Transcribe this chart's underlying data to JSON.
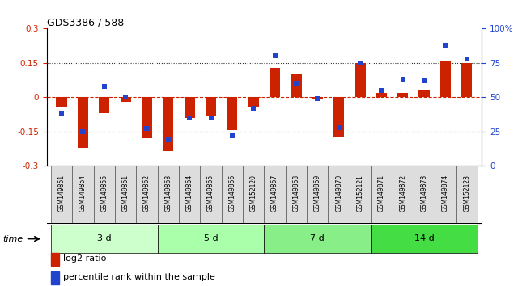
{
  "title": "GDS3386 / 588",
  "samples": [
    "GSM149851",
    "GSM149854",
    "GSM149855",
    "GSM149861",
    "GSM149862",
    "GSM149863",
    "GSM149864",
    "GSM149865",
    "GSM149866",
    "GSM152120",
    "GSM149867",
    "GSM149868",
    "GSM149869",
    "GSM149870",
    "GSM152121",
    "GSM149871",
    "GSM149872",
    "GSM149873",
    "GSM149874",
    "GSM152123"
  ],
  "log2_ratio": [
    -0.04,
    -0.22,
    -0.07,
    -0.02,
    -0.18,
    -0.235,
    -0.09,
    -0.08,
    -0.145,
    -0.04,
    0.13,
    0.1,
    -0.01,
    -0.17,
    0.15,
    0.02,
    0.02,
    0.03,
    0.155,
    0.148
  ],
  "percentile_rank": [
    38,
    25,
    58,
    50,
    27,
    19,
    35,
    35,
    22,
    42,
    80,
    60,
    49,
    28,
    75,
    55,
    63,
    62,
    88,
    78
  ],
  "groups": [
    {
      "label": "3 d",
      "start": 0,
      "end": 5,
      "color": "#ccffcc"
    },
    {
      "label": "5 d",
      "start": 5,
      "end": 10,
      "color": "#aaffaa"
    },
    {
      "label": "7 d",
      "start": 10,
      "end": 15,
      "color": "#88ee88"
    },
    {
      "label": "14 d",
      "start": 15,
      "end": 20,
      "color": "#44dd44"
    }
  ],
  "ylim_left": [
    -0.3,
    0.3
  ],
  "ylim_right": [
    0,
    100
  ],
  "yticks_left": [
    -0.3,
    -0.15,
    0.0,
    0.15,
    0.3
  ],
  "yticks_right": [
    0,
    25,
    50,
    75,
    100
  ],
  "ytick_labels_left": [
    "-0.3",
    "-0.15",
    "0",
    "0.15",
    "0.3"
  ],
  "ytick_labels_right": [
    "0",
    "25",
    "50",
    "75",
    "100%"
  ],
  "bar_color_red": "#cc2200",
  "bar_color_blue": "#2244cc",
  "hline_color": "#cc2200",
  "dotted_line_color": "#333333",
  "bg_color": "#ffffff",
  "plot_bg_color": "#ffffff",
  "tick_label_color_left": "#cc2200",
  "tick_label_color_right": "#2244cc",
  "bar_width": 0.5,
  "blue_marker_size": 5
}
